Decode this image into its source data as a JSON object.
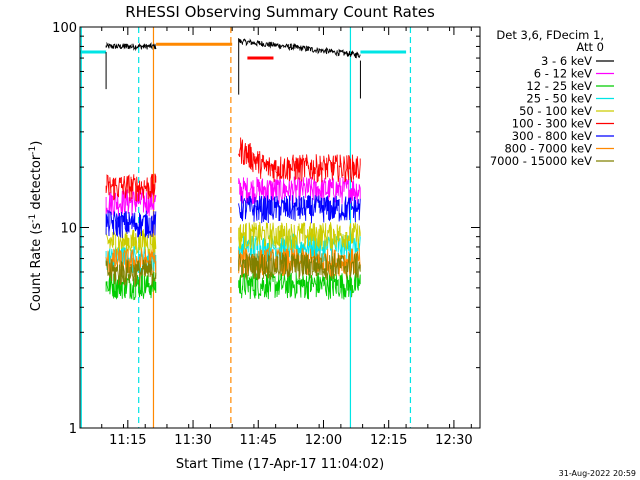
{
  "chart_data": {
    "type": "line",
    "title": "RHESSI Observing Summary Count Rates",
    "xlabel": "Start Time (17-Apr-17 11:04:02)",
    "ylabel_main": "Count Rate (s",
    "ylabel_sup1": "-1",
    "ylabel_mid": " detector",
    "ylabel_sup2": "-1",
    "ylabel_end": ")",
    "y_scale": "log",
    "ylim": [
      1,
      100
    ],
    "xlim_minutes": [
      0,
      92
    ],
    "x_ticks": [
      {
        "m": 11,
        "label": "11:15"
      },
      {
        "m": 26,
        "label": "11:30"
      },
      {
        "m": 41,
        "label": "11:45"
      },
      {
        "m": 56,
        "label": "12:00"
      },
      {
        "m": 71,
        "label": "12:15"
      },
      {
        "m": 86,
        "label": "12:30"
      }
    ],
    "y_ticks": [
      {
        "v": 1,
        "label": "1"
      },
      {
        "v": 10,
        "label": "10"
      },
      {
        "v": 100,
        "label": "100"
      }
    ],
    "legend_position": "right",
    "legend_header": [
      "Det 3,6, FDecim 1,",
      "Att 0"
    ],
    "series": [
      {
        "name": "3 - 6 keV",
        "color": "#000000",
        "level_a": 80,
        "level_b": 85
      },
      {
        "name": "6 - 12 keV",
        "color": "#ff00ff",
        "level_a": 13.5,
        "level_b": 15.5
      },
      {
        "name": "12 - 25 keV",
        "color": "#00cc00",
        "level_a": 5.2,
        "level_b": 5.2
      },
      {
        "name": "25 - 50 keV",
        "color": "#00e5e5",
        "level_a": 7,
        "level_b": 8
      },
      {
        "name": "50 - 100 keV",
        "color": "#cccc00",
        "level_a": 8.5,
        "level_b": 9.2
      },
      {
        "name": "100 - 300 keV",
        "color": "#ff0000",
        "level_a": 16,
        "level_b": 20
      },
      {
        "name": "300 - 800 keV",
        "color": "#0000ff",
        "level_a": 10.5,
        "level_b": 12.5
      },
      {
        "name": "800 - 7000 keV",
        "color": "#ff8800",
        "level_a": 6.8,
        "level_b": 6.8
      },
      {
        "name": "7000 - 15000 keV",
        "color": "#808000",
        "level_a": 6,
        "level_b": 6.5
      }
    ],
    "data_intervals_minutes": [
      [
        6,
        17.5
      ],
      [
        36.5,
        64.5
      ]
    ],
    "attenuator_level": 75,
    "attenuator_intervals_minutes": [
      [
        0,
        6
      ],
      [
        64.5,
        75
      ]
    ],
    "saa_level": 82,
    "saa_interval_minutes": [
      17.5,
      35
    ],
    "flare_marker": {
      "level": 70,
      "minutes": [
        38.5,
        44.5
      ]
    },
    "vlines": [
      {
        "m": 0.3,
        "color": "#00e5e5",
        "style": "solid"
      },
      {
        "m": 13.5,
        "color": "#00e5e5",
        "style": "dash"
      },
      {
        "m": 16.9,
        "color": "#ff8800",
        "style": "solid"
      },
      {
        "m": 34.7,
        "color": "#ff8800",
        "style": "dash"
      },
      {
        "m": 62.2,
        "color": "#00e5e5",
        "style": "solid"
      },
      {
        "m": 76,
        "color": "#00e5e5",
        "style": "dash"
      }
    ]
  },
  "timestamp": "31-Aug-2022 20:59"
}
